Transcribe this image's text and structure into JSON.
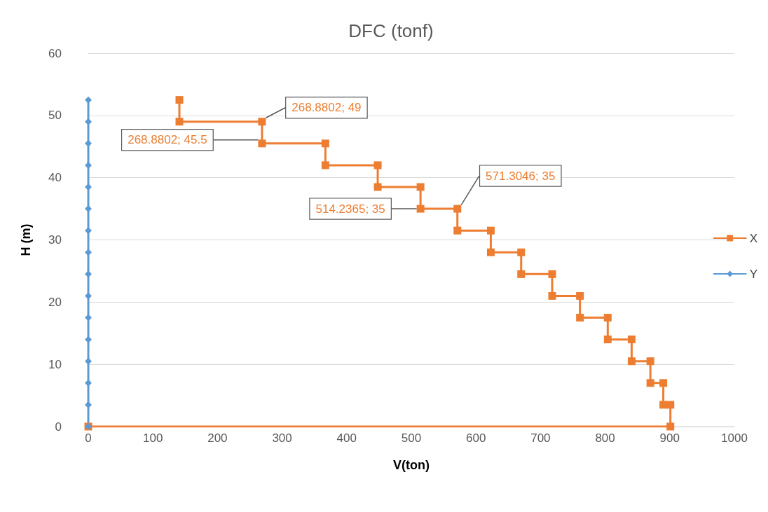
{
  "chart_data": {
    "type": "line",
    "title": "DFC (tonf)",
    "xlabel": "V(ton)",
    "ylabel": "H (m)",
    "xlim": [
      0,
      1000
    ],
    "xticks": [
      0,
      100,
      200,
      300,
      400,
      500,
      600,
      700,
      800,
      900,
      1000
    ],
    "ylim": [
      0,
      60
    ],
    "yticks": [
      0,
      10,
      20,
      30,
      40,
      50,
      60
    ],
    "grid": "y",
    "legend": "right",
    "series": [
      {
        "name": "X",
        "color": "#ed7d31",
        "marker": "square",
        "x": [
          0,
          901,
          901,
          890,
          890,
          870,
          870,
          841,
          841,
          804,
          804,
          761,
          761,
          718,
          718,
          670,
          670,
          623,
          623,
          571.3046,
          571.3046,
          514.2365,
          514.2365,
          448,
          448,
          367,
          367,
          268.8802,
          268.8802,
          141,
          141
        ],
        "values": [
          0,
          0,
          3.5,
          3.5,
          7,
          7,
          10.5,
          10.5,
          14,
          14,
          17.5,
          17.5,
          21,
          21,
          24.5,
          24.5,
          28,
          28,
          31.5,
          31.5,
          35,
          35,
          38.5,
          38.5,
          42,
          42,
          45.5,
          45.5,
          49,
          49,
          52.5
        ],
        "value_labels": [
          null,
          null,
          null,
          null,
          null,
          null,
          null,
          null,
          null,
          null,
          null,
          null,
          null,
          null,
          null,
          null,
          null,
          null,
          null,
          null,
          "571.3046; 35",
          "514.2365; 35",
          null,
          null,
          null,
          null,
          null,
          "268.8802; 45.5",
          "268.8802; 49",
          null,
          null
        ]
      },
      {
        "name": "Y",
        "color": "#5b9bd5",
        "marker": "diamond",
        "x": [
          0,
          0,
          0,
          0,
          0,
          0,
          0,
          0,
          0,
          0,
          0,
          0,
          0,
          0,
          0,
          0
        ],
        "values": [
          0,
          3.5,
          7,
          10.5,
          14,
          17.5,
          21,
          24.5,
          28,
          31.5,
          35,
          38.5,
          42,
          45.5,
          49,
          52.5
        ]
      }
    ]
  }
}
